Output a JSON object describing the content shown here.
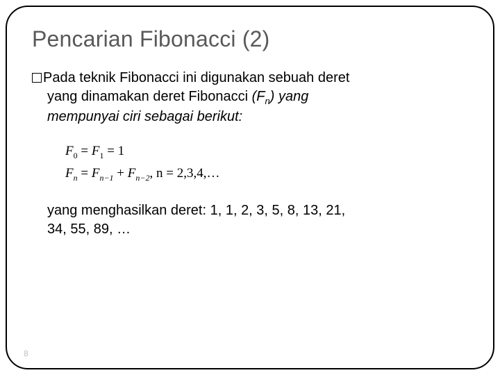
{
  "title": "Pencarian Fibonacci (2)",
  "bullet": {
    "line1_part1": "Pada teknik Fibonacci ini digunakan sebuah deret",
    "line2_part1": "yang dinamakan deret Fibonacci ",
    "line2_italic_F": "(F",
    "line2_sub_n": "n",
    "line2_italic_close": ") yang",
    "line3": "mempunyai ciri sebagai berikut:"
  },
  "formula": {
    "eq1_F": "F",
    "eq1_sub0": "0",
    "eq1_eq": " = ",
    "eq1_F2": "F",
    "eq1_sub1": "1",
    "eq1_rhs": " = 1",
    "eq2_F": "F",
    "eq2_subn": "n",
    "eq2_eq": " = ",
    "eq2_F2": "F",
    "eq2_subn1": "n−1",
    "eq2_plus": " + ",
    "eq2_F3": "F",
    "eq2_subn2": "n−2",
    "eq2_tail": ", n = 2,3,4,…"
  },
  "result": {
    "line1": "yang menghasilkan deret: 1, 1, 2, 3, 5, 8, 13, 21,",
    "line2": "34, 55, 89, …"
  },
  "page_number": "8",
  "colors": {
    "title_color": "#595959",
    "text_color": "#000000",
    "page_num_color": "#bfbfbf",
    "background": "#ffffff",
    "border_color": "#000000"
  },
  "typography": {
    "title_fontsize": 32,
    "body_fontsize": 20,
    "formula_fontsize": 19,
    "pagenum_fontsize": 12,
    "title_family": "Arial",
    "formula_family": "Times New Roman"
  },
  "layout": {
    "border_radius": 32,
    "border_width": 2,
    "slide_width": 720,
    "slide_height": 540
  }
}
